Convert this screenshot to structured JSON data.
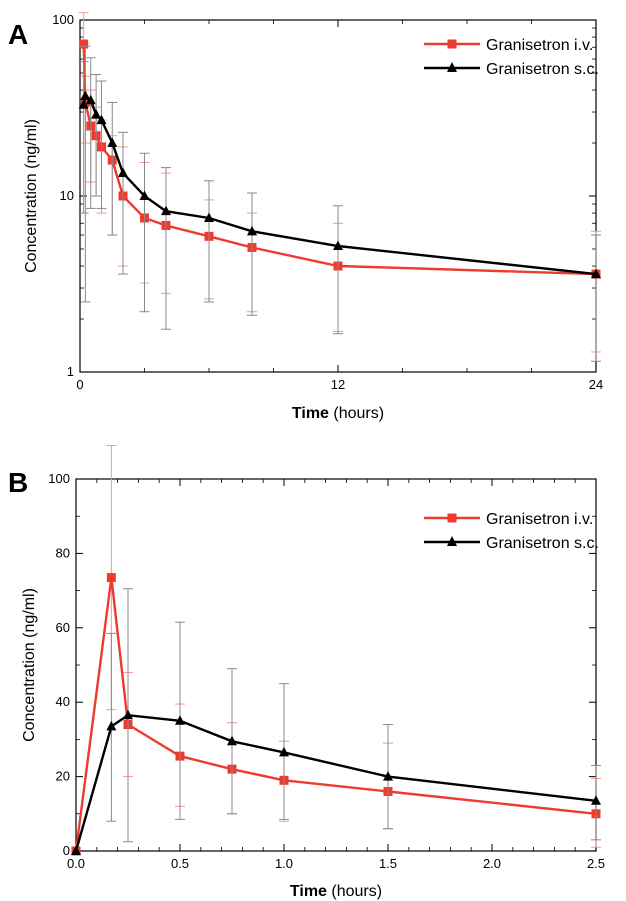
{
  "chart_data": [
    {
      "panel_label": "A",
      "type": "line",
      "xlabel_main": "Time",
      "xlabel_unit": "(hours)",
      "ylabel": "Concentration (ng/ml)",
      "y_scale": "log",
      "xlim": [
        0,
        24
      ],
      "ylim": [
        1,
        100
      ],
      "x_ticks": [
        0,
        12,
        24
      ],
      "y_ticks": [
        1,
        10,
        100
      ],
      "legend_position": "top-right",
      "series": [
        {
          "name_main": "Granisetron",
          "name_route": "i.v.",
          "color": "#ee3b2f",
          "marker": "square",
          "x": [
            0.17,
            0.25,
            0.5,
            0.75,
            1,
            1.5,
            2,
            3,
            4,
            6,
            8,
            12,
            24
          ],
          "y": [
            73,
            34,
            25,
            22,
            19,
            16,
            10,
            7.5,
            6.8,
            5.9,
            5.1,
            4.0,
            3.6
          ],
          "err_low": [
            37,
            20,
            12,
            10,
            8,
            6,
            4,
            3.2,
            2.8,
            2.6,
            2.2,
            1.7,
            1.3
          ],
          "err_high": [
            110,
            48,
            40,
            32,
            27,
            22,
            19,
            15.5,
            13.5,
            9.5,
            8.0,
            7.0,
            6.3
          ]
        },
        {
          "name_main": "Granisetron",
          "name_route": "s.c.",
          "color": "#000000",
          "marker": "triangle",
          "x": [
            0.17,
            0.25,
            0.5,
            0.75,
            1,
            1.5,
            2,
            3,
            4,
            6,
            8,
            12,
            24
          ],
          "y": [
            33,
            37,
            35,
            29,
            27,
            20,
            13.5,
            10,
            8.2,
            7.5,
            6.3,
            5.2,
            3.6
          ],
          "err_low": [
            8,
            2.5,
            8.5,
            10,
            8.5,
            6,
            3.6,
            2.2,
            1.75,
            2.5,
            2.1,
            1.65,
            1.15
          ],
          "err_high": [
            58,
            71,
            61,
            49,
            45,
            34,
            23,
            17.5,
            14.5,
            12.2,
            10.4,
            8.8,
            6.0
          ]
        }
      ]
    },
    {
      "panel_label": "B",
      "type": "line",
      "xlabel_main": "Time",
      "xlabel_unit": "(hours)",
      "ylabel": "Concentration (ng/ml)",
      "y_scale": "linear",
      "xlim": [
        0,
        2.5
      ],
      "ylim": [
        0,
        100
      ],
      "x_ticks": [
        0.0,
        0.5,
        1.0,
        1.5,
        2.0,
        2.5
      ],
      "x_tick_labels": [
        "0.0",
        "0.5",
        "1.0",
        "1.5",
        "2.0",
        "2.5"
      ],
      "y_ticks": [
        0,
        20,
        40,
        60,
        80,
        100
      ],
      "legend_position": "top-right",
      "series": [
        {
          "name_main": "Granisetron",
          "name_route": "i.v.",
          "color": "#ee3b2f",
          "marker": "square",
          "x": [
            0,
            0.17,
            0.25,
            0.5,
            0.75,
            1.0,
            1.5,
            2.5
          ],
          "y": [
            0,
            73.5,
            34,
            25.5,
            22,
            19,
            16,
            10
          ],
          "err_low": [
            0,
            38,
            20,
            12,
            10,
            8,
            6,
            1
          ],
          "err_high": [
            0,
            109,
            48,
            39.5,
            34.5,
            29.5,
            29,
            19.5
          ]
        },
        {
          "name_main": "Granisetron",
          "name_route": "s.c.",
          "color": "#000000",
          "marker": "triangle",
          "x": [
            0,
            0.17,
            0.25,
            0.5,
            0.75,
            1.0,
            1.5,
            2.5
          ],
          "y": [
            0,
            33.5,
            36.5,
            35,
            29.5,
            26.5,
            20,
            13.5
          ],
          "err_low": [
            0,
            8,
            2.5,
            8.5,
            10,
            8.5,
            6,
            3
          ],
          "err_high": [
            0,
            58.5,
            70.5,
            61.5,
            49,
            45,
            34,
            23
          ]
        }
      ]
    }
  ]
}
